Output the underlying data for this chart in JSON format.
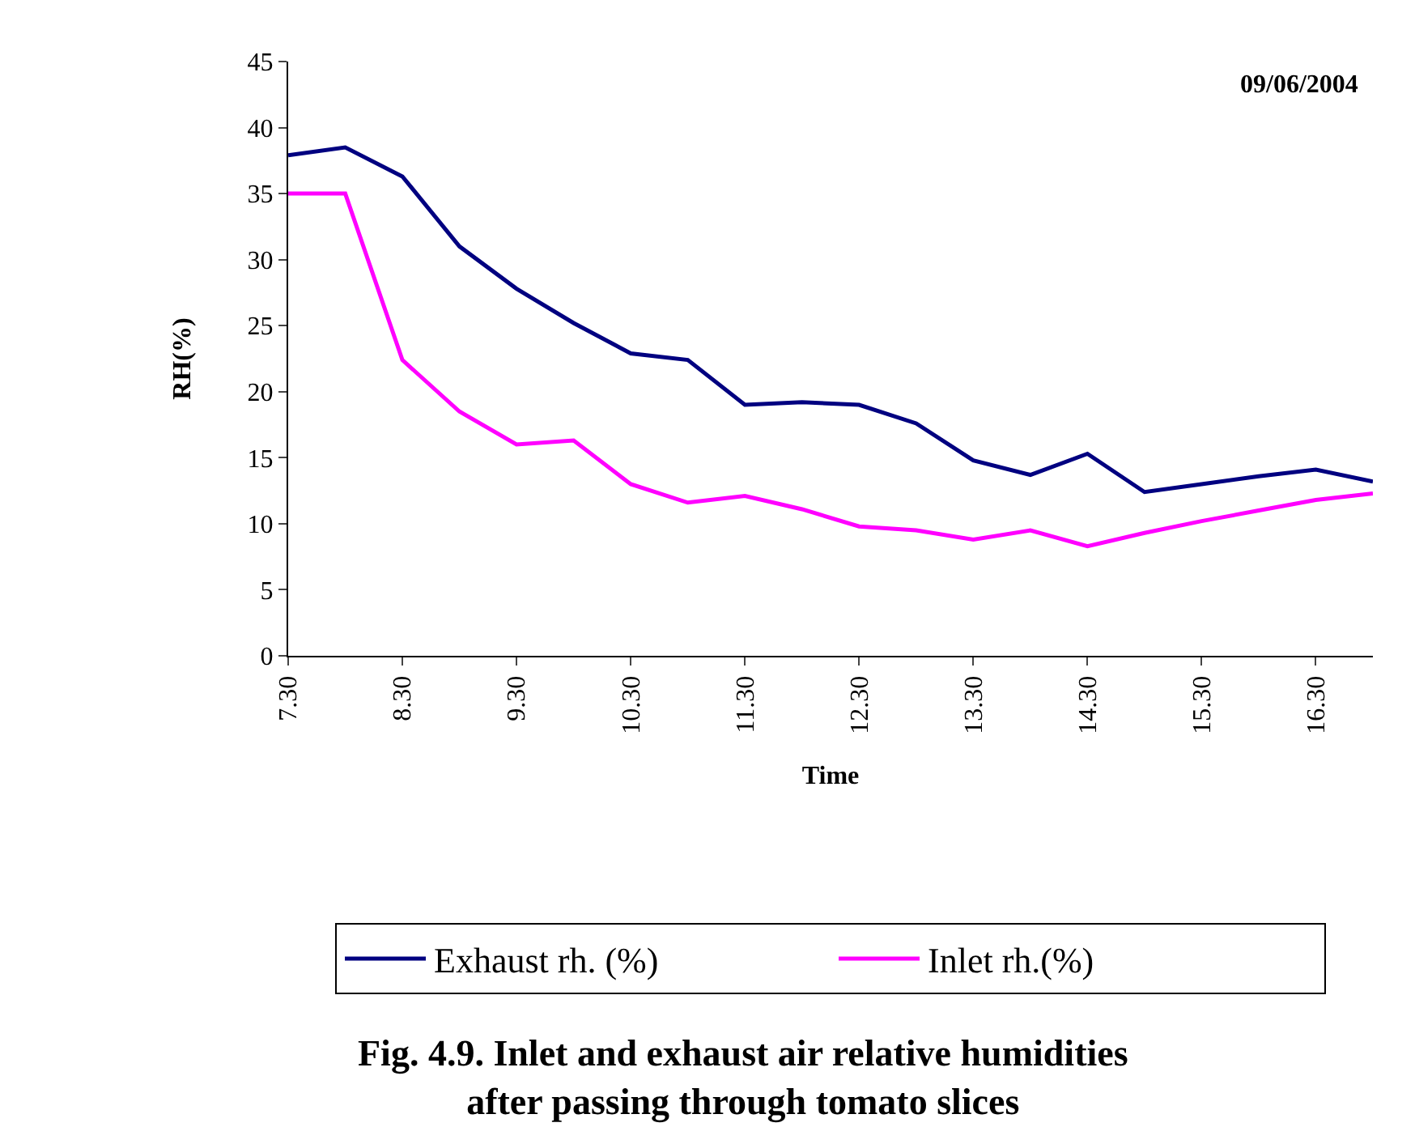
{
  "chart_data": {
    "type": "line",
    "xlabel": "Time",
    "ylabel": "RH(%)",
    "categories": [
      "7.30",
      null,
      "8.30",
      null,
      "9.30",
      null,
      "10.30",
      null,
      "11.30",
      null,
      "12.30",
      null,
      "13.30",
      null,
      "14.30",
      null,
      "15.30",
      null,
      "16.30",
      null
    ],
    "series": [
      {
        "name": "Exhaust rh. (%)",
        "color": "#000080",
        "values": [
          37.9,
          38.5,
          36.3,
          31,
          27.8,
          25.2,
          22.9,
          22.4,
          19,
          19.2,
          19,
          17.6,
          14.8,
          13.7,
          15.3,
          12.4,
          13,
          13.6,
          14.1,
          13.2
        ]
      },
      {
        "name": "Inlet rh.(%)",
        "color": "#ff00ff",
        "values": [
          35,
          35,
          22.4,
          18.5,
          16,
          16.3,
          13,
          11.6,
          12.1,
          11.1,
          9.8,
          9.5,
          8.8,
          9.5,
          8.3,
          9.3,
          10.2,
          11,
          11.8,
          12.3
        ]
      }
    ],
    "ylim": [
      0,
      45
    ],
    "yticks": [
      0,
      5,
      10,
      15,
      20,
      25,
      30,
      35,
      40,
      45
    ],
    "grid": false,
    "legend": "bottom",
    "marker": "none",
    "line_style": "solid",
    "annotations": [
      "09/06/2004",
      "Fig. 4.9. Inlet and exhaust air relative humidities\nafter passing through tomato slices"
    ]
  }
}
